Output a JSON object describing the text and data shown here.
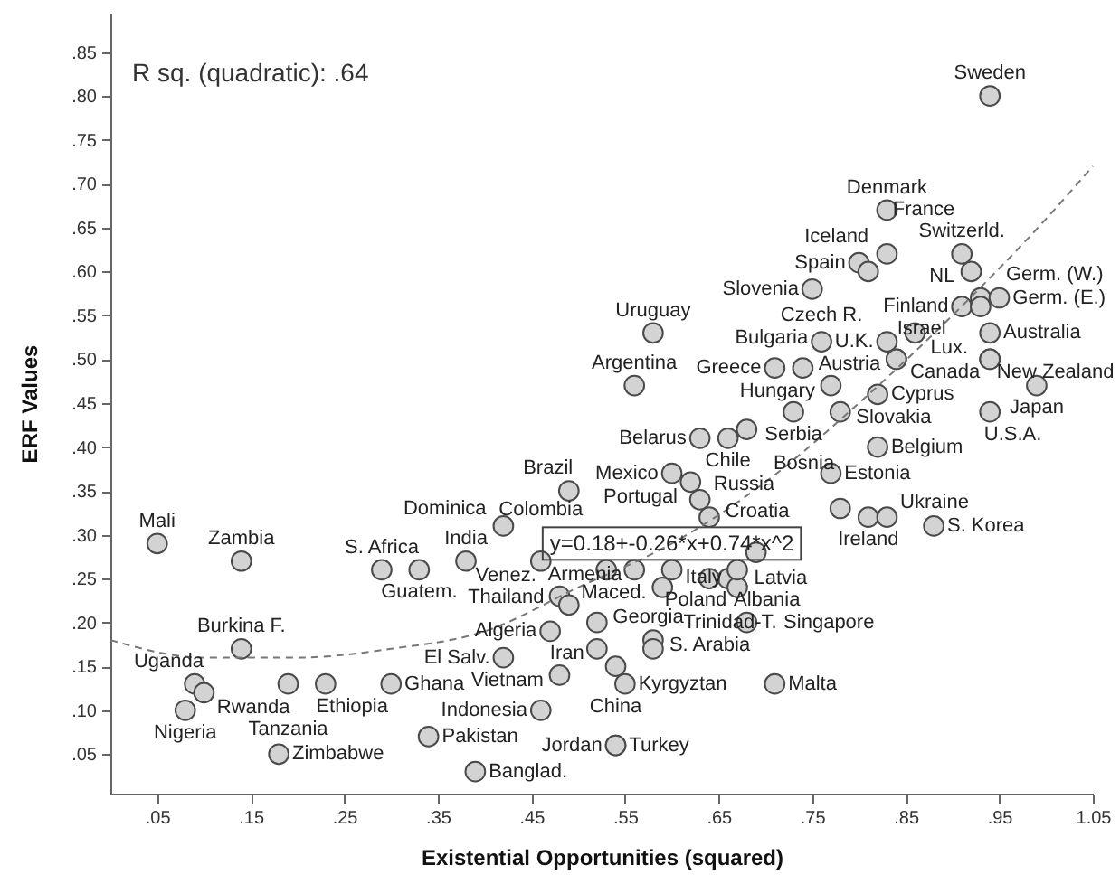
{
  "chart_data": {
    "type": "scatter",
    "xlabel": "Existential Opportunities (squared)",
    "ylabel": "ERF Values",
    "xlim": [
      0,
      1.05
    ],
    "ylim": [
      0.005,
      0.895
    ],
    "xticks": [
      {
        "value": 0.05,
        "label": ".05"
      },
      {
        "value": 0.15,
        "label": ".15"
      },
      {
        "value": 0.25,
        "label": ".25"
      },
      {
        "value": 0.35,
        "label": ".35"
      },
      {
        "value": 0.45,
        "label": ".45"
      },
      {
        "value": 0.55,
        "label": ".55"
      },
      {
        "value": 0.65,
        "label": ".65"
      },
      {
        "value": 0.75,
        "label": ".75"
      },
      {
        "value": 0.85,
        "label": ".85"
      },
      {
        "value": 0.95,
        "label": ".95"
      },
      1.05
    ],
    "yticks": [
      {
        "value": 0.05,
        "label": ".05"
      },
      {
        "value": 0.1,
        "label": ".10"
      },
      {
        "value": 0.15,
        "label": ".15"
      },
      {
        "value": 0.2,
        "label": ".20"
      },
      {
        "value": 0.25,
        "label": ".25"
      },
      {
        "value": 0.3,
        "label": ".30"
      },
      {
        "value": 0.35,
        "label": ".35"
      },
      {
        "value": 0.4,
        "label": ".40"
      },
      {
        "value": 0.45,
        "label": ".45"
      },
      {
        "value": 0.5,
        "label": ".50"
      },
      {
        "value": 0.55,
        "label": ".55"
      },
      {
        "value": 0.6,
        "label": ".60"
      },
      {
        "value": 0.65,
        "label": ".65"
      },
      {
        "value": 0.7,
        "label": ".70"
      },
      {
        "value": 0.75,
        "label": ".75"
      },
      {
        "value": 0.8,
        "label": ".80"
      },
      {
        "value": 0.85,
        "label": ".85"
      }
    ],
    "series": [
      {
        "color": "#d3d3d3",
        "marker": "circle",
        "x": [
          0.05,
          0.14,
          0.14,
          0.09,
          0.1,
          0.08,
          0.18,
          0.19,
          0.23,
          0.3,
          0.34,
          0.39,
          0.29,
          0.33,
          0.38,
          0.42,
          0.49,
          0.46,
          0.48,
          0.49,
          0.47,
          0.42,
          0.48,
          0.46,
          0.54,
          0.54,
          0.52,
          0.54,
          0.55,
          0.52,
          0.58,
          0.58,
          0.71,
          0.68,
          0.66,
          0.67,
          0.67,
          0.59,
          0.53,
          0.56,
          0.6,
          0.64,
          0.69,
          0.6,
          0.62,
          0.63,
          0.64,
          0.77,
          0.78,
          0.81,
          0.83,
          0.88,
          0.82,
          0.63,
          0.66,
          0.68,
          0.73,
          0.78,
          0.82,
          0.77,
          0.71,
          0.74,
          0.76,
          0.83,
          0.86,
          0.84,
          0.58,
          0.56,
          0.75,
          0.8,
          0.81,
          0.83,
          0.83,
          0.94,
          0.91,
          0.92,
          0.91,
          0.93,
          0.95,
          0.93,
          0.94,
          0.94,
          0.94,
          0.99,
          0.94,
          0.84
        ],
        "values": [
          0.29,
          0.27,
          0.17,
          0.13,
          0.12,
          0.1,
          0.05,
          0.13,
          0.13,
          0.13,
          0.07,
          0.03,
          0.26,
          0.26,
          0.27,
          0.31,
          0.35,
          0.27,
          0.23,
          0.22,
          0.19,
          0.16,
          0.14,
          0.1,
          0.06,
          0.06,
          0.17,
          0.15,
          0.13,
          0.2,
          0.18,
          0.17,
          0.13,
          0.2,
          0.25,
          0.24,
          0.26,
          0.24,
          0.26,
          0.26,
          0.26,
          0.25,
          0.28,
          0.37,
          0.36,
          0.34,
          0.32,
          0.37,
          0.33,
          0.32,
          0.32,
          0.31,
          0.4,
          0.41,
          0.41,
          0.42,
          0.44,
          0.44,
          0.46,
          0.47,
          0.49,
          0.49,
          0.52,
          0.52,
          0.53,
          0.5,
          0.53,
          0.47,
          0.58,
          0.61,
          0.6,
          0.62,
          0.67,
          0.8,
          0.62,
          0.6,
          0.56,
          0.57,
          0.57,
          0.56,
          0.53,
          0.5,
          0.5,
          0.47,
          0.44,
          0.5
        ]
      },
      {
        "type": "line",
        "color": "#777777",
        "line_style": "dashed",
        "x": [
          0,
          0.1,
          0.2,
          0.3,
          0.4,
          0.5,
          0.6,
          0.7,
          0.8,
          0.9,
          1.0,
          1.05
        ],
        "values": [
          0.18,
          0.16,
          0.16,
          0.17,
          0.19,
          0.24,
          0.29,
          0.36,
          0.45,
          0.55,
          0.66,
          0.72
        ]
      }
    ],
    "annotations": [
      "R sq. (quadratic): .64",
      {
        "text": "y=0.18+-0.26*x+0.74*x^2",
        "x": 0.6,
        "y": 0.29
      },
      {
        "text": "Mali",
        "x": 0.05,
        "y": 0.29
      },
      {
        "text": "Zambia",
        "x": 0.14,
        "y": 0.27
      },
      {
        "text": "Burkina F.",
        "x": 0.14,
        "y": 0.17
      },
      {
        "text": "Uganda",
        "x": 0.09,
        "y": 0.13
      },
      {
        "text": "Rwanda",
        "x": 0.1,
        "y": 0.12
      },
      {
        "text": "Nigeria",
        "x": 0.08,
        "y": 0.1
      },
      {
        "text": "Zimbabwe",
        "x": 0.18,
        "y": 0.05
      },
      {
        "text": "Tanzania",
        "x": 0.19,
        "y": 0.13
      },
      {
        "text": "Ethiopia",
        "x": 0.23,
        "y": 0.13
      },
      {
        "text": "Ghana",
        "x": 0.3,
        "y": 0.13
      },
      {
        "text": "Pakistan",
        "x": 0.34,
        "y": 0.07
      },
      {
        "text": "Banglad.",
        "x": 0.39,
        "y": 0.03
      },
      {
        "text": "S. Africa",
        "x": 0.29,
        "y": 0.26
      },
      {
        "text": "Guatem.",
        "x": 0.33,
        "y": 0.26
      },
      {
        "text": "India",
        "x": 0.38,
        "y": 0.27
      },
      {
        "text": "Dominica",
        "x": 0.42,
        "y": 0.31
      },
      {
        "text": "Brazil",
        "x": 0.49,
        "y": 0.35
      },
      {
        "text": "Colombia",
        "x": 0.46,
        "y": 0.27
      },
      {
        "text": "Venez.",
        "x": 0.48,
        "y": 0.23
      },
      {
        "text": "Thailand",
        "x": 0.49,
        "y": 0.22
      },
      {
        "text": "Algeria",
        "x": 0.47,
        "y": 0.19
      },
      {
        "text": "El Salv.",
        "x": 0.42,
        "y": 0.16
      },
      {
        "text": "Vietnam",
        "x": 0.48,
        "y": 0.14
      },
      {
        "text": "Indonesia",
        "x": 0.46,
        "y": 0.1
      },
      {
        "text": "Turkey",
        "x": 0.54,
        "y": 0.06
      },
      {
        "text": "Jordan",
        "x": 0.54,
        "y": 0.06
      },
      {
        "text": "Iran",
        "x": 0.52,
        "y": 0.17
      },
      {
        "text": "China",
        "x": 0.54,
        "y": 0.15
      },
      {
        "text": "Kyrgyztan",
        "x": 0.55,
        "y": 0.13
      },
      {
        "text": "Georgia",
        "x": 0.52,
        "y": 0.2
      },
      {
        "text": "S. Arabia",
        "x": 0.58,
        "y": 0.18
      },
      {
        "text": "Trinidad-T.",
        "x": 0.58,
        "y": 0.17
      },
      {
        "text": "Malta",
        "x": 0.71,
        "y": 0.13
      },
      {
        "text": "Singapore",
        "x": 0.68,
        "y": 0.2
      },
      {
        "text": "Latvia",
        "x": 0.66,
        "y": 0.25
      },
      {
        "text": "Poland",
        "x": 0.67,
        "y": 0.24
      },
      {
        "text": "Albania",
        "x": 0.67,
        "y": 0.26
      },
      {
        "text": "Maced.",
        "x": 0.59,
        "y": 0.24
      },
      {
        "text": "Armenia",
        "x": 0.56,
        "y": 0.26
      },
      {
        "text": "Italy",
        "x": 0.69,
        "y": 0.28
      },
      {
        "text": "Mexico",
        "x": 0.6,
        "y": 0.37
      },
      {
        "text": "Portugal",
        "x": 0.62,
        "y": 0.36
      },
      {
        "text": "Russia",
        "x": 0.63,
        "y": 0.34
      },
      {
        "text": "Croatia",
        "x": 0.64,
        "y": 0.32
      },
      {
        "text": "Estonia",
        "x": 0.77,
        "y": 0.37
      },
      {
        "text": "Bosnia",
        "x": 0.78,
        "y": 0.33
      },
      {
        "text": "Ireland",
        "x": 0.81,
        "y": 0.32
      },
      {
        "text": "Ukraine",
        "x": 0.83,
        "y": 0.32
      },
      {
        "text": "S. Korea",
        "x": 0.88,
        "y": 0.31
      },
      {
        "text": "Belgium",
        "x": 0.82,
        "y": 0.4
      },
      {
        "text": "Belarus",
        "x": 0.63,
        "y": 0.41
      },
      {
        "text": "Chile",
        "x": 0.66,
        "y": 0.41
      },
      {
        "text": "Serbia",
        "x": 0.73,
        "y": 0.44
      },
      {
        "text": "Slovakia",
        "x": 0.78,
        "y": 0.44
      },
      {
        "text": "Cyprus",
        "x": 0.82,
        "y": 0.46
      },
      {
        "text": "Hungary",
        "x": 0.77,
        "y": 0.47
      },
      {
        "text": "Greece",
        "x": 0.71,
        "y": 0.49
      },
      {
        "text": "Bulgaria",
        "x": 0.74,
        "y": 0.49
      },
      {
        "text": "Czech R.",
        "x": 0.76,
        "y": 0.52
      },
      {
        "text": "U.K.",
        "x": 0.83,
        "y": 0.52
      },
      {
        "text": "Lux.",
        "x": 0.86,
        "y": 0.53
      },
      {
        "text": "Austria",
        "x": 0.84,
        "y": 0.5
      },
      {
        "text": "Israel",
        "x": 0.84,
        "y": 0.5
      },
      {
        "text": "Uruguay",
        "x": 0.58,
        "y": 0.53
      },
      {
        "text": "Argentina",
        "x": 0.56,
        "y": 0.47
      },
      {
        "text": "Slovenia",
        "x": 0.75,
        "y": 0.58
      },
      {
        "text": "Spain",
        "x": 0.8,
        "y": 0.61
      },
      {
        "text": "Iceland",
        "x": 0.81,
        "y": 0.6
      },
      {
        "text": "France",
        "x": 0.83,
        "y": 0.62
      },
      {
        "text": "Denmark",
        "x": 0.83,
        "y": 0.67
      },
      {
        "text": "Sweden",
        "x": 0.94,
        "y": 0.8
      },
      {
        "text": "Switzerld.",
        "x": 0.91,
        "y": 0.62
      },
      {
        "text": "NL",
        "x": 0.92,
        "y": 0.6
      },
      {
        "text": "Finland",
        "x": 0.91,
        "y": 0.56
      },
      {
        "text": "Germ. (W.)",
        "x": 0.93,
        "y": 0.57
      },
      {
        "text": "Germ. (E.)",
        "x": 0.95,
        "y": 0.57
      },
      {
        "text": "Australia",
        "x": 0.94,
        "y": 0.53
      },
      {
        "text": "New Zealand",
        "x": 0.94,
        "y": 0.5
      },
      {
        "text": "Canada",
        "x": 0.94,
        "y": 0.5
      },
      {
        "text": "Japan",
        "x": 0.99,
        "y": 0.47
      },
      {
        "text": "U.S.A.",
        "x": 0.94,
        "y": 0.44
      }
    ]
  }
}
